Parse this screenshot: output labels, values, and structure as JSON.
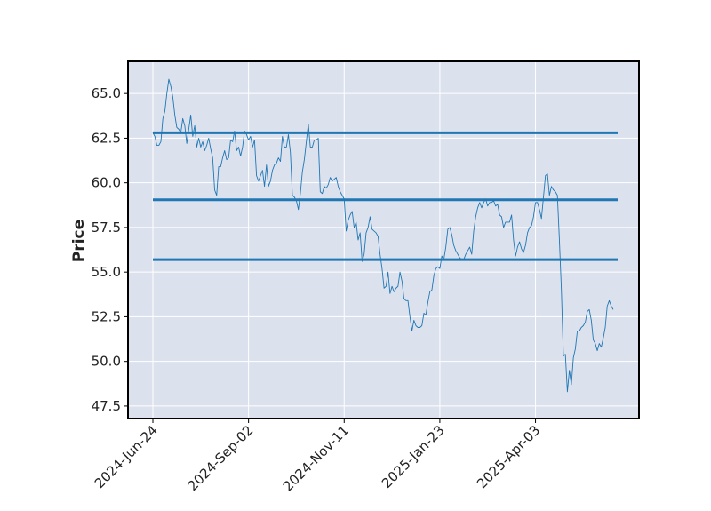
{
  "chart_data": {
    "type": "line",
    "ylabel": "Price",
    "xlabel": "",
    "title": "",
    "ylim": [
      46.8,
      66.8
    ],
    "grid": true,
    "x_ticks": [
      {
        "label": "2024-Jun-24",
        "index": 0
      },
      {
        "label": "2024-Sep-02",
        "index": 48
      },
      {
        "label": "2024-Nov-11",
        "index": 96
      },
      {
        "label": "2025-Jan-23",
        "index": 144
      },
      {
        "label": "2025-Apr-03",
        "index": 192
      }
    ],
    "y_ticks": [
      47.5,
      50.0,
      52.5,
      55.0,
      57.5,
      60.0,
      62.5,
      65.0
    ],
    "y_tick_labels": [
      "47.5",
      "50.0",
      "52.5",
      "55.0",
      "57.5",
      "60.0",
      "62.5",
      "65.0"
    ],
    "x_range": [
      -12,
      230
    ],
    "series": [
      {
        "type": "line",
        "color": "#1f77b4",
        "values": [
          62.8,
          62.6,
          62.1,
          62.1,
          62.3,
          63.6,
          64.0,
          65.0,
          65.8,
          65.4,
          64.8,
          63.8,
          63.1,
          63.0,
          62.8,
          63.6,
          63.2,
          62.2,
          63.0,
          63.8,
          62.6,
          63.2,
          62.0,
          62.5,
          62.0,
          62.3,
          61.8,
          62.1,
          62.5,
          61.9,
          61.4,
          59.6,
          59.3,
          60.9,
          60.9,
          61.4,
          61.8,
          61.3,
          61.4,
          62.4,
          62.3,
          62.9,
          61.8,
          62.0,
          61.5,
          62.0,
          62.9,
          62.7,
          62.4,
          62.6,
          62.0,
          62.4,
          60.4,
          60.1,
          60.4,
          60.7,
          59.8,
          61.0,
          59.8,
          60.1,
          60.7,
          61.0,
          61.1,
          61.4,
          61.2,
          62.6,
          62.0,
          62.0,
          62.7,
          61.7,
          59.3,
          59.2,
          59.0,
          58.5,
          59.4,
          60.6,
          61.3,
          62.3,
          63.3,
          62.0,
          62.0,
          62.4,
          62.4,
          62.5,
          59.5,
          59.4,
          59.8,
          59.7,
          59.9,
          60.3,
          60.1,
          60.2,
          60.3,
          59.8,
          59.5,
          59.3,
          59.1,
          57.3,
          57.9,
          58.2,
          58.4,
          57.5,
          57.8,
          56.8,
          57.2,
          55.6,
          56.0,
          57.2,
          57.5,
          58.1,
          57.4,
          57.3,
          57.2,
          57.0,
          56.0,
          55.2,
          54.1,
          54.2,
          55.0,
          53.8,
          54.2,
          53.9,
          54.1,
          54.2,
          55.0,
          54.5,
          53.5,
          53.4,
          53.4,
          52.5,
          51.7,
          52.3,
          52.0,
          51.9,
          51.9,
          52.0,
          52.7,
          52.6,
          53.3,
          53.9,
          54.0,
          54.8,
          55.2,
          55.3,
          55.2,
          55.9,
          55.7,
          56.4,
          57.4,
          57.5,
          57.1,
          56.5,
          56.2,
          56.0,
          55.8,
          55.7,
          55.7,
          56.0,
          56.2,
          56.4,
          56.0,
          57.3,
          58.1,
          58.6,
          58.9,
          58.6,
          58.9,
          59.1,
          58.7,
          58.9,
          58.9,
          59.0,
          58.7,
          58.8,
          58.2,
          58.1,
          57.5,
          57.8,
          57.8,
          57.8,
          58.2,
          56.8,
          55.9,
          56.4,
          56.7,
          56.3,
          56.1,
          56.5,
          57.2,
          57.5,
          57.6,
          58.1,
          58.9,
          58.9,
          58.5,
          58.0,
          59.2,
          60.4,
          60.5,
          59.3,
          59.8,
          59.6,
          59.5,
          59.3,
          56.8,
          54.0,
          50.3,
          50.4,
          48.3,
          49.5,
          48.7,
          50.2,
          50.7,
          51.7,
          51.7,
          51.9,
          52.0,
          52.2,
          52.8,
          52.9,
          52.3,
          51.2,
          51.0,
          50.6,
          51.0,
          50.8,
          51.3,
          51.9,
          53.1,
          53.4,
          53.1,
          52.9
        ]
      },
      {
        "type": "hline",
        "value": 62.8,
        "color": "#1f77b4"
      },
      {
        "type": "hline",
        "value": 59.05,
        "color": "#1f77b4"
      },
      {
        "type": "hline",
        "value": 55.7,
        "color": "#1f77b4"
      }
    ]
  }
}
